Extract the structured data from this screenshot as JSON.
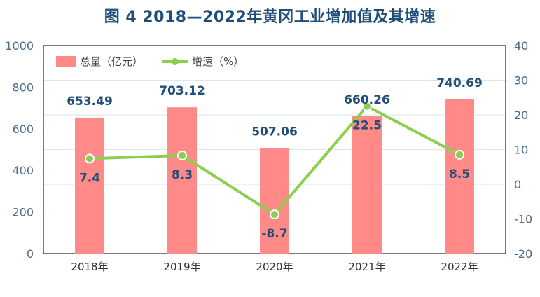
{
  "title": "图 4   2018—2022年黄冈工业增加值及其增速",
  "chart_data": {
    "type": "bar",
    "categories": [
      "2018年",
      "2019年",
      "2020年",
      "2021年",
      "2022年"
    ],
    "series": [
      {
        "name": "总量（亿元）",
        "type": "bar",
        "axis": "left",
        "values": [
          653.49,
          703.12,
          507.06,
          660.26,
          740.69
        ],
        "labels": [
          "653.49",
          "703.12",
          "507.06",
          "660.26",
          "740.69"
        ]
      },
      {
        "name": "增速（%）",
        "type": "line",
        "axis": "right",
        "values": [
          7.4,
          8.3,
          -8.7,
          22.5,
          8.5
        ],
        "labels": [
          "7.4",
          "8.3",
          "-8.7",
          "22.5",
          "8.5"
        ]
      }
    ],
    "y_left": {
      "min": 0,
      "max": 1000,
      "ticks": [
        0,
        200,
        400,
        600,
        800,
        1000
      ]
    },
    "y_right": {
      "min": -20,
      "max": 40,
      "ticks": [
        -20,
        -10,
        0,
        10,
        20,
        30,
        40
      ]
    },
    "grid": true,
    "legend_position": "top-left",
    "colors": {
      "bar": "#ff8a87",
      "line": "#8ccf4e",
      "text": "#1f4e79",
      "grid": "#dde6ee",
      "axis": "#4a6b8a"
    }
  }
}
